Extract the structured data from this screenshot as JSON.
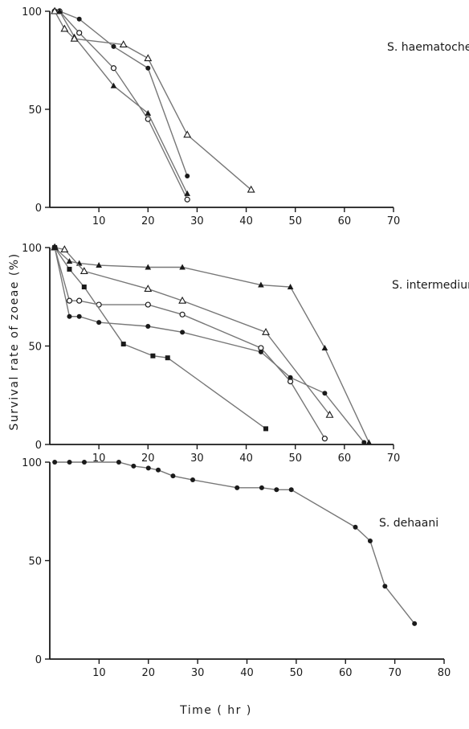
{
  "figure": {
    "ylabel": "Survival rate of zoeae (%)",
    "xlabel": "Time ( hr )"
  },
  "chart_data": [
    {
      "type": "line",
      "title": "S. haematocheir",
      "xlim": [
        0,
        70
      ],
      "ylim": [
        0,
        100
      ],
      "xticks": [
        10,
        20,
        30,
        40,
        50,
        60,
        70
      ],
      "yticks": [
        0,
        50,
        100
      ],
      "series": [
        {
          "marker": "filled-circle",
          "x": [
            1,
            2,
            6,
            13,
            20,
            28
          ],
          "y": [
            100,
            100,
            96,
            82,
            71,
            16
          ]
        },
        {
          "marker": "open-circle",
          "x": [
            1,
            2,
            6,
            13,
            20,
            28
          ],
          "y": [
            100,
            100,
            89,
            71,
            45,
            4
          ]
        },
        {
          "marker": "filled-triangle",
          "x": [
            1,
            2,
            5,
            13,
            20,
            28
          ],
          "y": [
            100,
            100,
            87,
            62,
            48,
            7
          ]
        },
        {
          "marker": "open-triangle",
          "x": [
            1,
            3,
            5,
            15,
            20,
            28,
            41
          ],
          "y": [
            100,
            91,
            86,
            83,
            76,
            37,
            9
          ]
        }
      ]
    },
    {
      "type": "line",
      "title": "S. intermedium",
      "xlim": [
        0,
        70
      ],
      "ylim": [
        0,
        100
      ],
      "xticks": [
        10,
        20,
        30,
        40,
        50,
        60,
        70
      ],
      "yticks": [
        0,
        50,
        100
      ],
      "series": [
        {
          "marker": "filled-triangle",
          "x": [
            1,
            4,
            6,
            10,
            20,
            27,
            43,
            49,
            56,
            65
          ],
          "y": [
            100,
            93,
            92,
            91,
            90,
            90,
            81,
            80,
            49,
            1
          ]
        },
        {
          "marker": "open-triangle",
          "x": [
            1,
            3,
            7,
            20,
            27,
            44,
            57
          ],
          "y": [
            100,
            99,
            88,
            79,
            73,
            57,
            15
          ]
        },
        {
          "marker": "open-circle",
          "x": [
            1,
            4,
            6,
            10,
            20,
            27,
            43,
            49,
            56
          ],
          "y": [
            100,
            73,
            73,
            71,
            71,
            66,
            49,
            32,
            3
          ]
        },
        {
          "marker": "filled-circle",
          "x": [
            1,
            4,
            6,
            10,
            20,
            27,
            43,
            49,
            56,
            64
          ],
          "y": [
            100,
            65,
            65,
            62,
            60,
            57,
            47,
            34,
            26,
            1
          ]
        },
        {
          "marker": "filled-square",
          "x": [
            1,
            4,
            7,
            15,
            21,
            24,
            44
          ],
          "y": [
            100,
            89,
            80,
            51,
            45,
            44,
            8
          ]
        }
      ]
    },
    {
      "type": "line",
      "title": "S. dehaani",
      "xlim": [
        0,
        80
      ],
      "ylim": [
        0,
        100
      ],
      "xticks": [
        10,
        20,
        30,
        40,
        50,
        60,
        70,
        80
      ],
      "yticks": [
        0,
        50,
        100
      ],
      "series": [
        {
          "marker": "filled-circle",
          "x": [
            1,
            4,
            7,
            14,
            17,
            20,
            22,
            25,
            29,
            38,
            43,
            46,
            49,
            62,
            65,
            68,
            74
          ],
          "y": [
            100,
            100,
            100,
            100,
            98,
            97,
            96,
            93,
            91,
            87,
            87,
            86,
            86,
            67,
            60,
            37,
            18
          ]
        }
      ]
    }
  ]
}
